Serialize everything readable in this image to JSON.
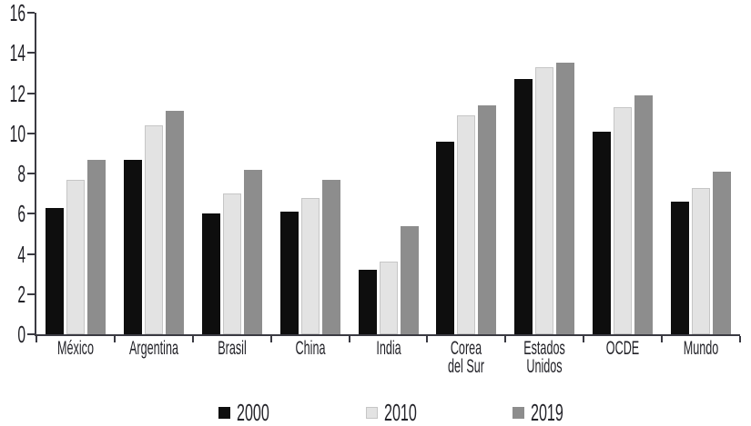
{
  "chart_data": {
    "type": "bar",
    "title": "",
    "xlabel": "",
    "ylabel": "",
    "categories": [
      "México",
      "Argentina",
      "Brasil",
      "China",
      "India",
      "Corea del Sur",
      "Estados Unidos",
      "OCDE",
      "Mundo"
    ],
    "category_lines": [
      [
        "México"
      ],
      [
        "Argentina"
      ],
      [
        "Brasil"
      ],
      [
        "China"
      ],
      [
        "India"
      ],
      [
        "Corea",
        "del Sur"
      ],
      [
        "Estados",
        "Unidos"
      ],
      [
        "OCDE"
      ],
      [
        "Mundo"
      ]
    ],
    "series": [
      {
        "name": "2000",
        "color": "#0e0e0e",
        "values": [
          6.3,
          8.7,
          6.0,
          6.1,
          3.2,
          9.6,
          12.7,
          10.1,
          6.6
        ]
      },
      {
        "name": "2010",
        "color": "#e3e3e3",
        "border": "#c6c6c6",
        "values": [
          7.7,
          10.4,
          7.0,
          6.8,
          3.6,
          10.9,
          13.3,
          11.3,
          7.3
        ]
      },
      {
        "name": "2019",
        "color": "#8d8d8d",
        "values": [
          8.7,
          11.1,
          8.2,
          7.7,
          5.4,
          11.4,
          13.5,
          11.9,
          8.1
        ]
      }
    ],
    "ylim": [
      0,
      16
    ],
    "y_ticks": [
      0,
      2,
      4,
      6,
      8,
      10,
      12,
      14,
      16
    ],
    "grid": false,
    "legend_position": "bottom",
    "colors": {
      "axis": "#3a3a42",
      "text": "#222228",
      "background": "#ffffff"
    }
  }
}
